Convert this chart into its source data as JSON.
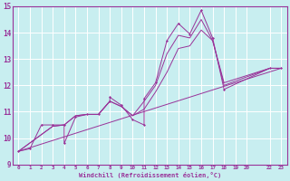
{
  "bg_color": "#c8eef0",
  "line_color": "#993399",
  "grid_color": "#ffffff",
  "xlim": [
    -0.5,
    23.5
  ],
  "ylim": [
    9,
    15
  ],
  "x_ticks": [
    0,
    1,
    2,
    3,
    4,
    5,
    6,
    7,
    8,
    9,
    10,
    11,
    12,
    13,
    14,
    15,
    16,
    17,
    18,
    19,
    20,
    22,
    23
  ],
  "x_tick_labels": [
    "0",
    "1",
    "2",
    "3",
    "4",
    "5",
    "6",
    "7",
    "8",
    "9",
    "10",
    "11",
    "12",
    "13",
    "14",
    "15",
    "16",
    "17",
    "18",
    "19",
    "20",
    "22",
    "23"
  ],
  "y_ticks": [
    9,
    10,
    11,
    12,
    13,
    14,
    15
  ],
  "xlabel": "Windchill (Refroidissement éolien,°C)",
  "series1_x": [
    0,
    1,
    2,
    3,
    4,
    4,
    5,
    6,
    7,
    8,
    8,
    9,
    10,
    11,
    11,
    12,
    13,
    14,
    15,
    16,
    17,
    18,
    22,
    23
  ],
  "series1_y": [
    9.5,
    9.6,
    10.5,
    10.5,
    10.5,
    9.8,
    10.8,
    10.9,
    10.9,
    11.4,
    11.55,
    11.25,
    10.7,
    10.5,
    11.5,
    12.1,
    13.7,
    14.35,
    13.95,
    14.85,
    13.8,
    11.85,
    12.65,
    12.65
  ],
  "series2_x": [
    0,
    23
  ],
  "series2_y": [
    9.5,
    12.65
  ],
  "series3_x": [
    0,
    3,
    4,
    5,
    6,
    7,
    8,
    9,
    10,
    11,
    12,
    13,
    14,
    15,
    16,
    17,
    18,
    22,
    23
  ],
  "series3_y": [
    9.5,
    10.45,
    10.5,
    10.85,
    10.9,
    10.9,
    11.4,
    11.2,
    10.85,
    11.1,
    11.75,
    12.5,
    13.4,
    13.5,
    14.1,
    13.7,
    12.1,
    12.65,
    12.65
  ],
  "series4_x": [
    0,
    3,
    4,
    5,
    6,
    7,
    8,
    9,
    10,
    11,
    12,
    13,
    14,
    15,
    16,
    17,
    18,
    22,
    23
  ],
  "series4_y": [
    9.5,
    10.45,
    10.5,
    10.85,
    10.9,
    10.9,
    11.4,
    11.2,
    10.85,
    11.4,
    12.0,
    13.2,
    13.9,
    13.8,
    14.5,
    13.7,
    12.0,
    12.65,
    12.65
  ]
}
